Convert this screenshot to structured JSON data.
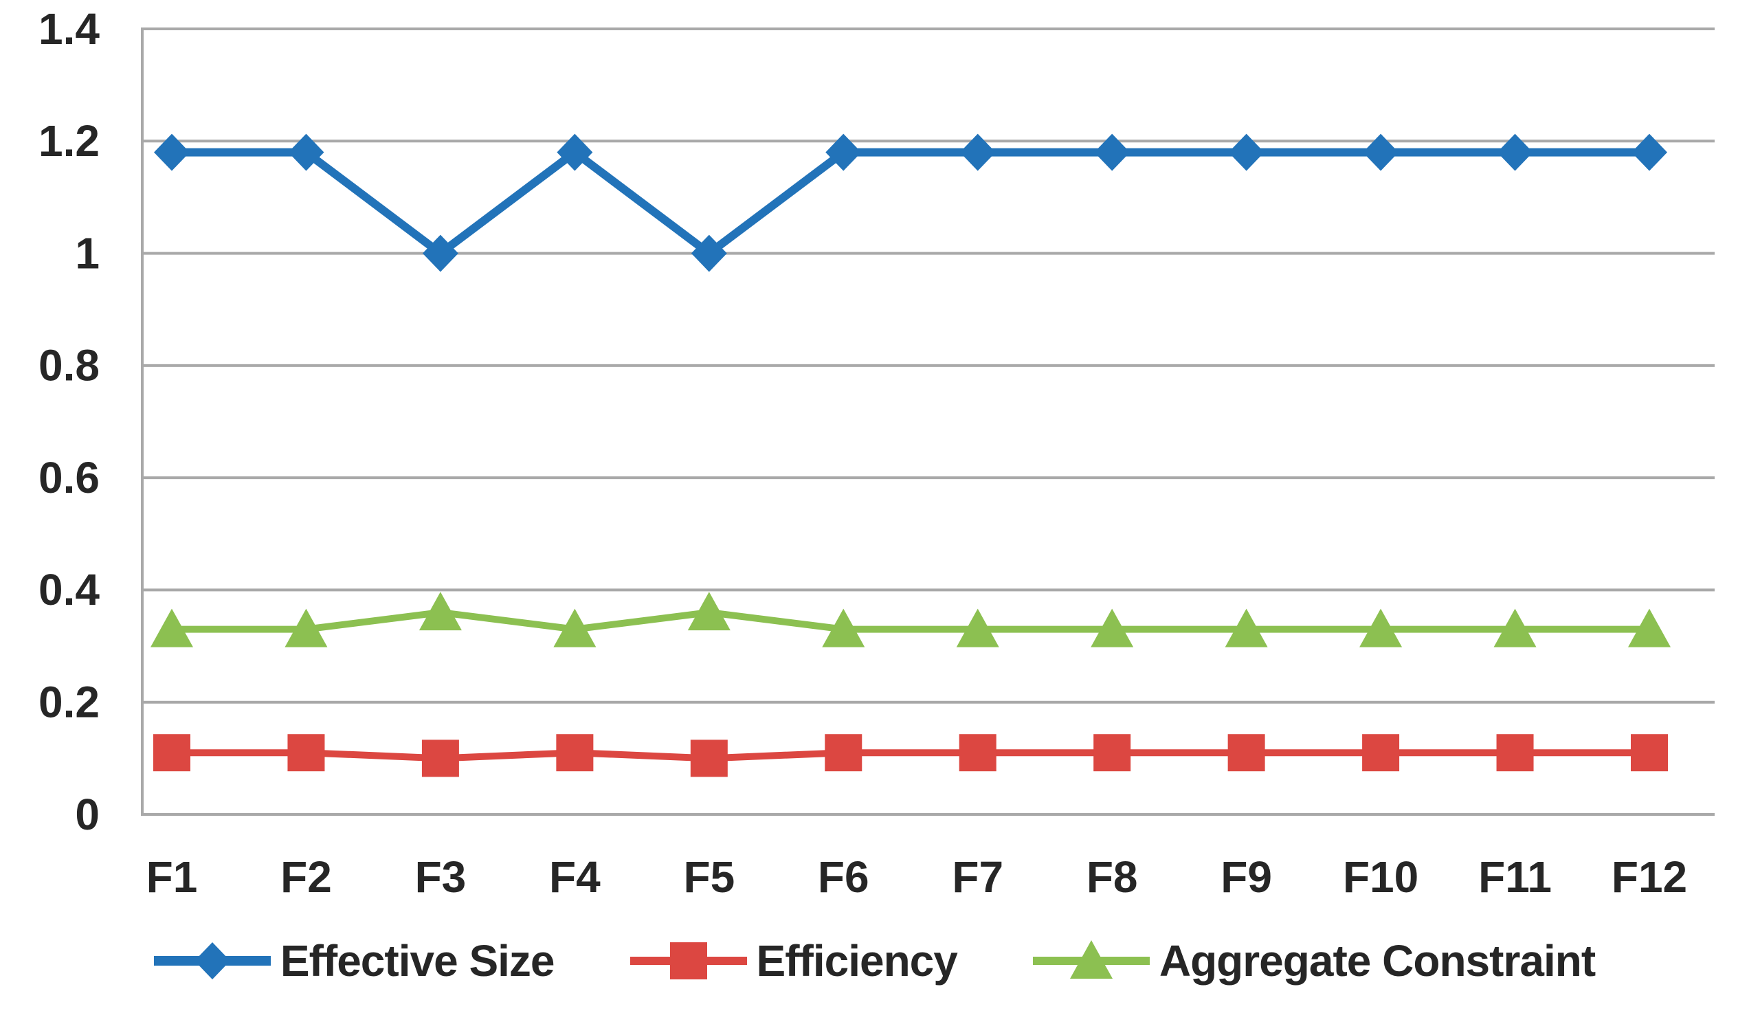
{
  "figure": {
    "background_color": "#ffffff",
    "text_color": "#262626",
    "grid_color": "#a9a9a9"
  },
  "chart_data": {
    "type": "line",
    "title": "",
    "xlabel": "",
    "ylabel": "",
    "categories": [
      "F1",
      "F2",
      "F3",
      "F4",
      "F5",
      "F6",
      "F7",
      "F8",
      "F9",
      "F10",
      "F11",
      "F12"
    ],
    "series": [
      {
        "name": "Effective Size",
        "marker": "diamond",
        "color": "#2273b9",
        "line_width": 12,
        "values": [
          1.18,
          1.18,
          1.0,
          1.18,
          1.0,
          1.18,
          1.18,
          1.18,
          1.18,
          1.18,
          1.18,
          1.18
        ]
      },
      {
        "name": "Efficiency",
        "marker": "square",
        "color": "#dc4741",
        "line_width": 10,
        "values": [
          0.11,
          0.11,
          0.1,
          0.11,
          0.1,
          0.11,
          0.11,
          0.11,
          0.11,
          0.11,
          0.11,
          0.11
        ]
      },
      {
        "name": "Aggregate Constraint",
        "marker": "triangle",
        "color": "#8cc051",
        "line_width": 10,
        "values": [
          0.33,
          0.33,
          0.36,
          0.33,
          0.36,
          0.33,
          0.33,
          0.33,
          0.33,
          0.33,
          0.33,
          0.33
        ]
      }
    ],
    "ylim": [
      0,
      1.4
    ],
    "yticks": [
      0,
      0.2,
      0.4,
      0.6,
      0.8,
      1,
      1.2,
      1.4
    ],
    "ytick_labels": [
      "0",
      "0.2",
      "0.4",
      "0.6",
      "0.8",
      "1",
      "1.2",
      "1.4"
    ],
    "grid": true,
    "legend_position": "bottom"
  }
}
